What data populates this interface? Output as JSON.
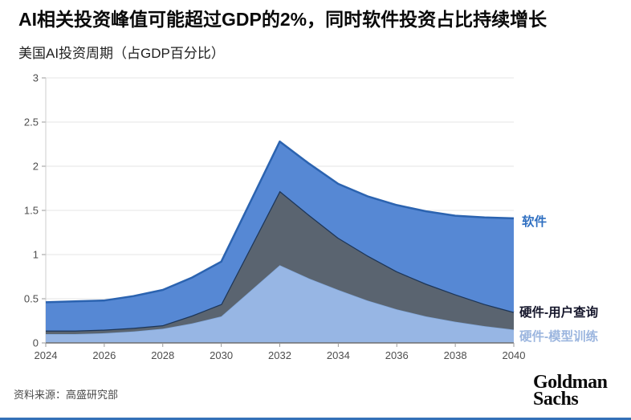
{
  "header": {
    "title": "AI相关投资峰值可能超过GDP的2%，同时软件投资占比持续增长"
  },
  "chart_data": {
    "type": "area",
    "stacked": true,
    "title": "美国AI投资周期（占GDP百分比）",
    "xlabel": "",
    "ylabel": "",
    "ylim": [
      0,
      3
    ],
    "grid": "horizontal",
    "legend_position": "right-inline",
    "x": [
      2024,
      2025,
      2026,
      2027,
      2028,
      2029,
      2030,
      2031,
      2032,
      2033,
      2034,
      2035,
      2036,
      2037,
      2038,
      2039,
      2040
    ],
    "x_ticks": [
      "2024",
      "2026",
      "2028",
      "2030",
      "2032",
      "2034",
      "2036",
      "2038",
      "2040"
    ],
    "y_ticks": [
      "0",
      "0.5",
      "1",
      "1.5",
      "2",
      "2.5",
      "3"
    ],
    "series": [
      {
        "key": "hardware-model-training",
        "name": "硬件-模型训练",
        "fill": "#97b6e4",
        "stroke": "#84a9db",
        "stroke_width": 1.5,
        "label_color": "#9cb6df",
        "values": [
          0.1,
          0.1,
          0.11,
          0.13,
          0.16,
          0.22,
          0.3,
          0.59,
          0.88,
          0.73,
          0.6,
          0.48,
          0.38,
          0.3,
          0.24,
          0.19,
          0.15
        ]
      },
      {
        "key": "hardware-user-queries",
        "name": "硬件-用户查询",
        "fill": "#5a6470",
        "stroke": "#1c3557",
        "stroke_width": 2.5,
        "label_color": "#15162b",
        "values": [
          0.04,
          0.04,
          0.04,
          0.04,
          0.04,
          0.09,
          0.14,
          0.49,
          0.84,
          0.72,
          0.59,
          0.51,
          0.43,
          0.37,
          0.31,
          0.25,
          0.2
        ]
      },
      {
        "key": "software",
        "name": "软件",
        "fill": "#5688d4",
        "stroke": "#2b63b0",
        "stroke_width": 2.5,
        "label_color": "#2f6fc1",
        "values": [
          0.32,
          0.33,
          0.33,
          0.36,
          0.4,
          0.43,
          0.48,
          0.52,
          0.56,
          0.58,
          0.61,
          0.67,
          0.75,
          0.82,
          0.89,
          0.98,
          1.06
        ]
      }
    ],
    "stacked_totals": [
      0.46,
      0.47,
      0.48,
      0.53,
      0.6,
      0.74,
      0.92,
      1.6,
      2.28,
      2.03,
      1.8,
      1.66,
      1.56,
      1.49,
      1.44,
      1.42,
      1.41
    ],
    "grid_color": "#e4e4e4",
    "axis_color": "#6f6f6f",
    "minor_axis_color": "#cccccc",
    "tick_color": "#9a9a9a",
    "tick_label_color": "#4d4d4d"
  },
  "footer": {
    "source": "资料来源：高盛研究部",
    "logo_line1": "Goldman",
    "logo_line2": "Sachs",
    "accent_bar_color": "#3470b7"
  }
}
